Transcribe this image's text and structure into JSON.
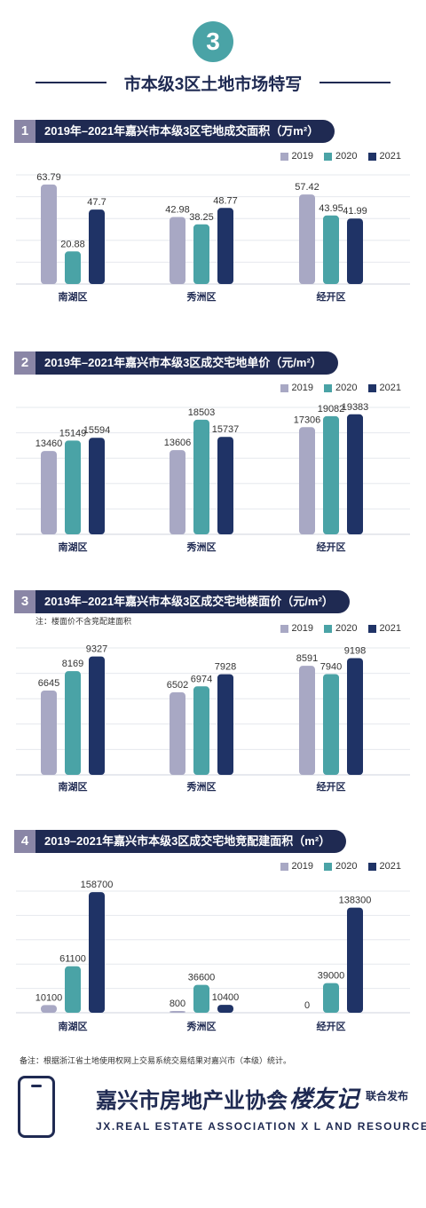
{
  "badge": "3",
  "page_title": "市本级3区土地市场特写",
  "legend_labels": [
    "2019",
    "2020",
    "2021"
  ],
  "colors": {
    "y2019": "#a8a8c4",
    "y2020": "#4aa3a6",
    "y2021": "#1f3366",
    "dark": "#1f2a52",
    "num_bg": "#8a86a6"
  },
  "sections": [
    {
      "num": "1",
      "title": "2019年–2021年嘉兴市本级3区宅地成交面积（万m²）",
      "note": ""
    },
    {
      "num": "2",
      "title": "2019年–2021年嘉兴市本级3区成交宅地单价（元/m²）",
      "note": ""
    },
    {
      "num": "3",
      "title": "2019年–2021年嘉兴市本级3区成交宅地楼面价（元/m²）",
      "note": "注：楼面价不含竞配建面积"
    },
    {
      "num": "4",
      "title": "2019–2021年嘉兴市本级3区成交宅地竞配建面积（m²）",
      "note": ""
    }
  ],
  "chart_data": [
    {
      "type": "bar",
      "title": "2019年–2021年嘉兴市本级3区宅地成交面积（万m²）",
      "categories": [
        "南湖区",
        "秀洲区",
        "经开区"
      ],
      "series": [
        {
          "name": "2019",
          "values": [
            63.79,
            42.98,
            57.42
          ]
        },
        {
          "name": "2020",
          "values": [
            20.88,
            38.25,
            43.95
          ]
        },
        {
          "name": "2021",
          "values": [
            47.7,
            48.77,
            41.99
          ]
        }
      ],
      "labels": [
        [
          "63.79",
          "42.98",
          "57.42"
        ],
        [
          "20.88",
          "38.25",
          "43.95"
        ],
        [
          "47.7",
          "48.77",
          "41.99"
        ]
      ],
      "ylim": [
        0,
        70
      ],
      "grid": true,
      "legend": "top-right"
    },
    {
      "type": "bar",
      "title": "2019年–2021年嘉兴市本级3区成交宅地单价（元/m²）",
      "categories": [
        "南湖区",
        "秀洲区",
        "经开区"
      ],
      "series": [
        {
          "name": "2019",
          "values": [
            13460,
            13606,
            17306
          ]
        },
        {
          "name": "2020",
          "values": [
            15149,
            18503,
            19082
          ]
        },
        {
          "name": "2021",
          "values": [
            15594,
            15737,
            19383
          ]
        }
      ],
      "labels": [
        [
          "13460",
          "13606",
          "17306"
        ],
        [
          "15149",
          "18503",
          "19082"
        ],
        [
          "15594",
          "15737",
          "19383"
        ]
      ],
      "ylim": [
        0,
        20500
      ],
      "grid": true,
      "legend": "top-right"
    },
    {
      "type": "bar",
      "title": "2019年–2021年嘉兴市本级3区成交宅地楼面价（元/m²）",
      "categories": [
        "南湖区",
        "秀洲区",
        "经开区"
      ],
      "series": [
        {
          "name": "2019",
          "values": [
            6645,
            6502,
            8591
          ]
        },
        {
          "name": "2020",
          "values": [
            8169,
            6974,
            7940
          ]
        },
        {
          "name": "2021",
          "values": [
            9327,
            7928,
            9198
          ]
        }
      ],
      "labels": [
        [
          "6645",
          "6502",
          "8591"
        ],
        [
          "8169",
          "6974",
          "7940"
        ],
        [
          "9327",
          "7928",
          "9198"
        ]
      ],
      "ylim": [
        0,
        10000
      ],
      "grid": true,
      "legend": "top-right"
    },
    {
      "type": "bar",
      "title": "2019–2021年嘉兴市本级3区成交宅地竞配建面积（m²）",
      "categories": [
        "南湖区",
        "秀洲区",
        "经开区"
      ],
      "series": [
        {
          "name": "2019",
          "values": [
            10100,
            800,
            0
          ]
        },
        {
          "name": "2020",
          "values": [
            61100,
            36600,
            39000
          ]
        },
        {
          "name": "2021",
          "values": [
            158700,
            10400,
            138300
          ]
        }
      ],
      "labels": [
        [
          "10100",
          "800",
          "0"
        ],
        [
          "61100",
          "36600",
          "39000"
        ],
        [
          "158700",
          "10400",
          "138300"
        ]
      ],
      "ylim": [
        0,
        160000
      ],
      "grid": true,
      "legend": "top-right"
    }
  ],
  "footnote": "备注：根据浙江省土地使用权网上交易系统交易结果对嘉兴市（本级）统计。",
  "footer": {
    "title": "嘉兴市房地产业协会",
    "times": "×",
    "brand": "楼友记",
    "tag": "联合发布",
    "subtitle": "JX.REAL ESTATE ASSOCIATION X L AND RESOURCES"
  }
}
